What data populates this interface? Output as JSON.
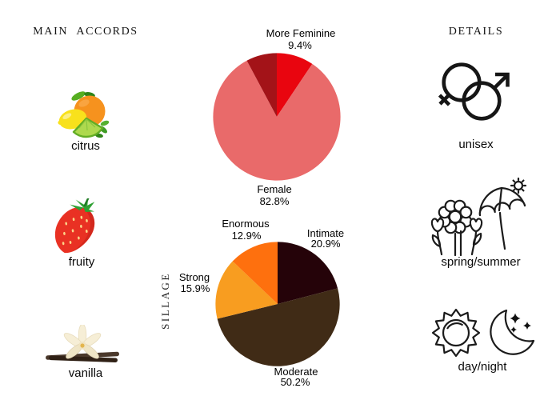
{
  "left_panel": {
    "header": "MAIN ACCORDS",
    "accords": [
      {
        "label": "citrus",
        "icon": "citrus-fruits-icon"
      },
      {
        "label": "fruity",
        "icon": "strawberry-icon"
      },
      {
        "label": "vanilla",
        "icon": "vanilla-flower-icon"
      }
    ]
  },
  "right_panel": {
    "header": "DETAILS",
    "details": [
      {
        "label": "unisex",
        "icon": "gender-unisex-icon"
      },
      {
        "label": "spring/summer",
        "icon": "flowers-umbrella-sun-icon"
      },
      {
        "label": "day/night",
        "icon": "sun-moon-icon"
      }
    ]
  },
  "chart_data": [
    {
      "type": "pie",
      "name": "gender-votes",
      "legend_position": "none",
      "slices": [
        {
          "label": "More Feminine",
          "value": 9.4,
          "value_text": "9.4%",
          "color": "#e9050f"
        },
        {
          "label": "Female",
          "value": 82.8,
          "value_text": "82.8%",
          "color": "#e96a6a"
        },
        {
          "label": "",
          "value": 7.8,
          "value_text": "",
          "color": "#a31318"
        }
      ]
    },
    {
      "type": "pie",
      "name": "sillage-votes",
      "axis_label": "SILLAGE",
      "legend_position": "none",
      "slices": [
        {
          "label": "Intimate",
          "value": 20.9,
          "value_text": "20.9%",
          "color": "#250309"
        },
        {
          "label": "Moderate",
          "value": 50.2,
          "value_text": "50.2%",
          "color": "#402b16"
        },
        {
          "label": "Strong",
          "value": 15.9,
          "value_text": "15.9%",
          "color": "#f89d20"
        },
        {
          "label": "Enormous",
          "value": 12.9,
          "value_text": "12.9%",
          "color": "#fe700e"
        }
      ]
    }
  ]
}
